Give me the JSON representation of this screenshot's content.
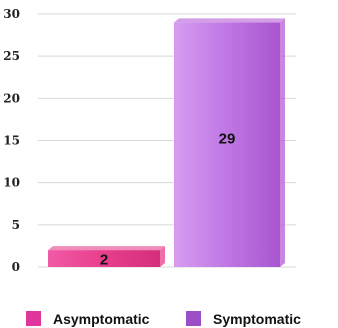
{
  "chart_data": {
    "type": "bar",
    "categories": [
      "Asymptomatic",
      "Symptomatic"
    ],
    "values": [
      2,
      29
    ],
    "data_labels": [
      "2",
      "29"
    ],
    "ylim": [
      0,
      30
    ],
    "yticks": [
      0,
      5,
      10,
      15,
      20,
      25,
      30
    ],
    "ytick_labels": [
      "0",
      "5",
      "10",
      "15",
      "20",
      "25",
      "30"
    ],
    "grid": true,
    "legend_position": "bottom",
    "colors": [
      "#e83e8c",
      "#b55ed4"
    ],
    "legend": [
      {
        "label": "Asymptomatic",
        "color": "#e0359a"
      },
      {
        "label": "Symptomatic",
        "color": "#9b4fc4"
      }
    ]
  }
}
